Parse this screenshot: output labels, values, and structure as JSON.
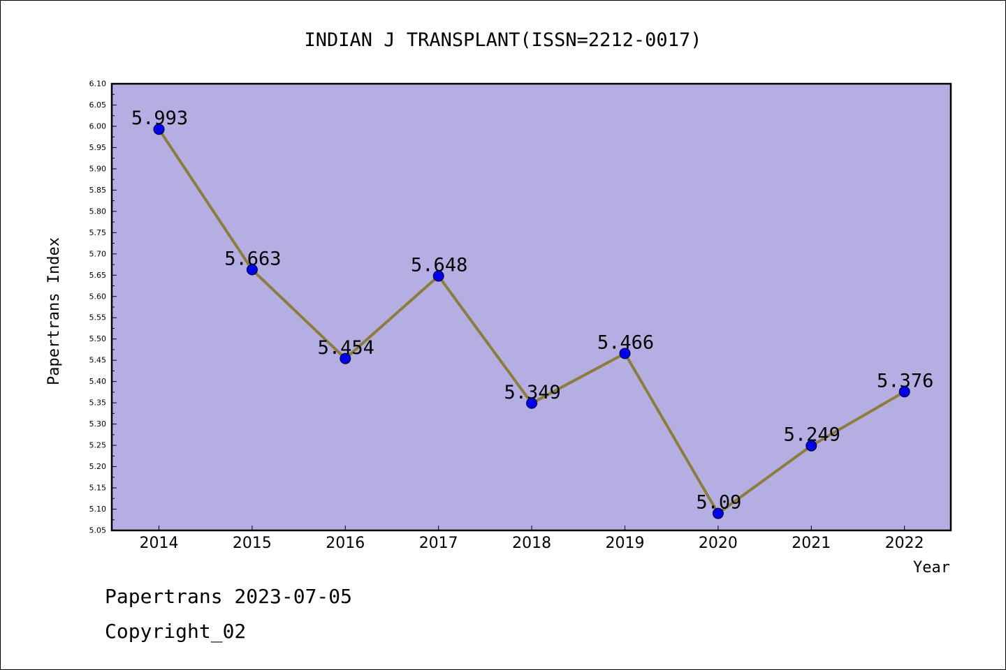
{
  "chart_data": {
    "type": "line",
    "title": "INDIAN J TRANSPLANT(ISSN=2212-0017)",
    "xlabel": "Year",
    "ylabel": "Papertrans Index",
    "categories": [
      "2014",
      "2015",
      "2016",
      "2017",
      "2018",
      "2019",
      "2020",
      "2021",
      "2022"
    ],
    "series": [
      {
        "values": [
          5.993,
          5.663,
          5.454,
          5.648,
          5.349,
          5.466,
          5.09,
          5.249,
          5.376
        ]
      }
    ],
    "data_labels": [
      "5.993",
      "5.663",
      "5.454",
      "5.648",
      "5.349",
      "5.466",
      "5.09",
      "5.249",
      "5.376"
    ],
    "ylim": [
      5.05,
      6.1
    ],
    "y_ticks": [
      "5.05",
      "5.10",
      "5.15",
      "5.20",
      "5.25",
      "5.30",
      "5.35",
      "5.40",
      "5.45",
      "5.50",
      "5.55",
      "5.60",
      "5.65",
      "5.70",
      "5.75",
      "5.80",
      "5.85",
      "5.90",
      "5.95",
      "6.00",
      "6.05",
      "6.10"
    ],
    "grid": false,
    "colors": {
      "plot_background": "#b5aee2",
      "line": "#8b7d3a",
      "marker": "#0000ee"
    }
  },
  "footer": {
    "date_text": "Papertrans 2023-07-05",
    "copyright_text": "Copyright_02"
  }
}
